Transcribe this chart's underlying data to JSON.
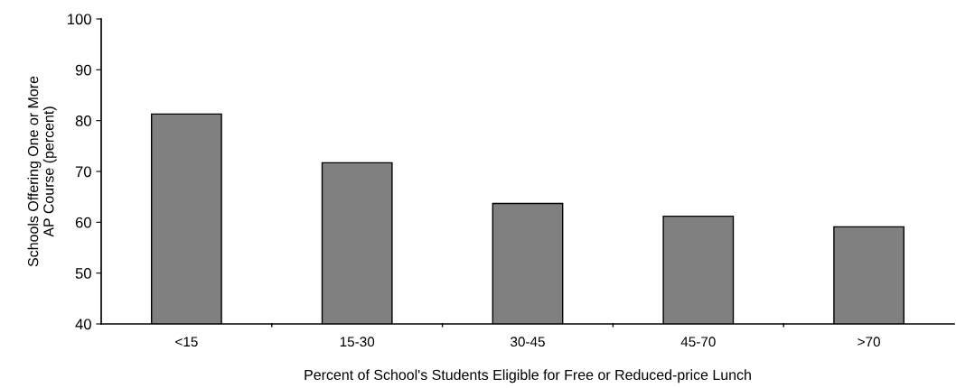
{
  "chart_data": {
    "type": "bar",
    "categories": [
      "<15",
      "15-30",
      "30-45",
      "45-70",
      ">70"
    ],
    "values": [
      81.3,
      71.7,
      63.7,
      61.2,
      59.1
    ],
    "color": "#808080",
    "ylim": [
      40,
      100
    ],
    "yticks": [
      40,
      50,
      60,
      70,
      80,
      90,
      100
    ],
    "xlabel": "Percent of School's Students Eligible for Free or Reduced-price Lunch",
    "ylabel": "Schools Offering One or More\nAP Course (percent)",
    "grid": false,
    "legend": false
  }
}
